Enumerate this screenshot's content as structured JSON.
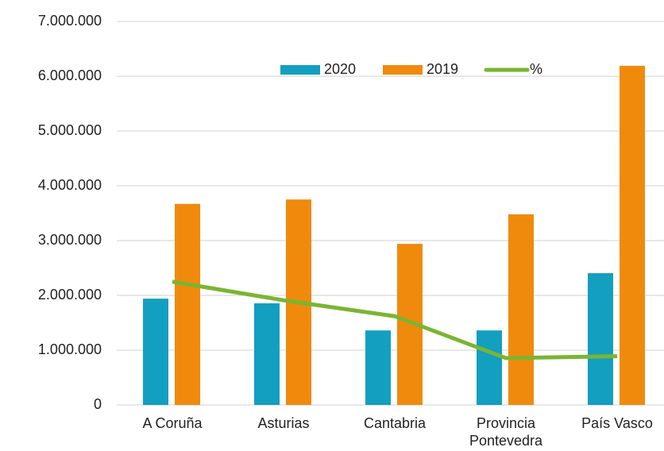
{
  "chart_data": {
    "type": "bar",
    "categories": [
      "A Coruña",
      "Asturias",
      "Cantabria",
      "Provincia\nPontevedra",
      "País Vasco"
    ],
    "series": [
      {
        "name": "2020",
        "type": "bar",
        "color": "#139fbf",
        "values": [
          1940000,
          1855000,
          1360000,
          1360000,
          2405000
        ]
      },
      {
        "name": "2019",
        "type": "bar",
        "color": "#f08a0c",
        "values": [
          3670000,
          3750000,
          2940000,
          3480000,
          6190000
        ]
      },
      {
        "name": "%",
        "type": "line",
        "color": "#7ab532",
        "values": [
          2250000,
          1910000,
          1620000,
          855000,
          890000
        ]
      }
    ],
    "ylim": [
      0,
      7000000
    ],
    "yticks": [
      0,
      {
        "value": 1000000,
        "label": "1.000.000"
      },
      {
        "value": 2000000,
        "label": "2.000.000"
      },
      {
        "value": 3000000,
        "label": "3.000.000"
      },
      {
        "value": 4000000,
        "label": "4.000.000"
      },
      {
        "value": 5000000,
        "label": "5.000.000"
      },
      {
        "value": 6000000,
        "label": "6.000.000"
      },
      {
        "value": 7000000,
        "label": "7.000.000"
      }
    ],
    "grid": true,
    "legend": "top"
  }
}
